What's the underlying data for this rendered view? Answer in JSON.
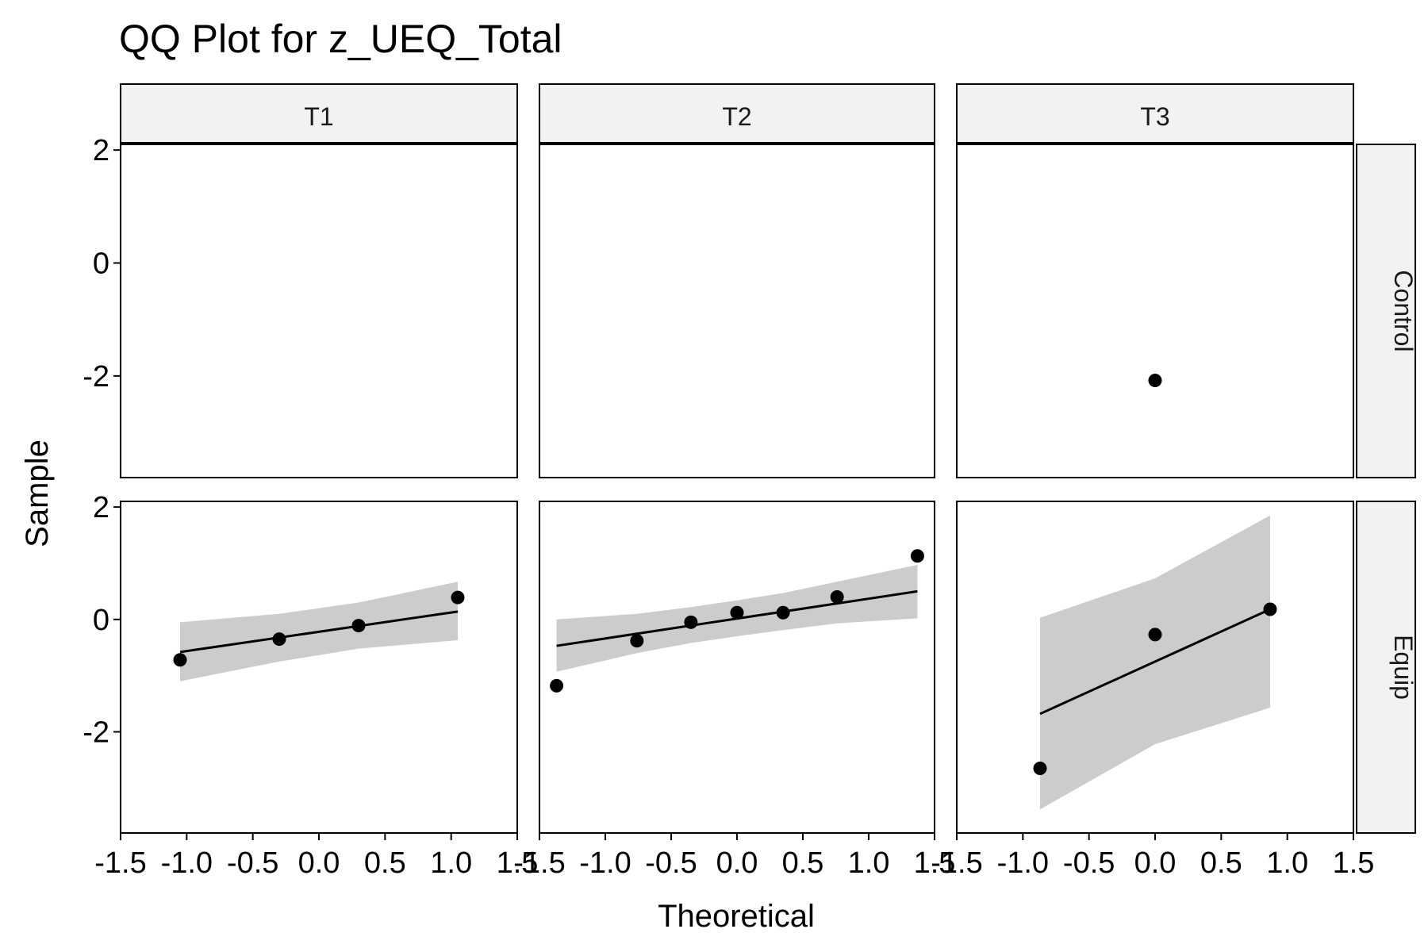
{
  "chart_data": {
    "type": "scatter",
    "title": "QQ Plot for z_UEQ_Total",
    "xlabel": "Theoretical",
    "ylabel": "Sample",
    "xlim": [
      -1.5,
      1.5
    ],
    "ylim": [
      -3.8,
      2.1
    ],
    "x_ticks": [
      -1.5,
      -1.0,
      -0.5,
      0.0,
      0.5,
      1.0,
      1.5
    ],
    "x_tick_labels": [
      "-1.5",
      "-1.0",
      "-0.5",
      "0.0",
      "0.5",
      "1.0",
      "1.5"
    ],
    "y_ticks": [
      2,
      0,
      -2
    ],
    "y_tick_labels": [
      "2",
      "0",
      "-2"
    ],
    "columns": [
      "T1",
      "T2",
      "T3"
    ],
    "rows": [
      "Control",
      "Equip"
    ],
    "grid": false,
    "colors": {
      "points": "#000000",
      "line": "#000000",
      "band": "#cccccc",
      "strip_fill": "#f2f2f2",
      "border": "#000000"
    },
    "panels": [
      {
        "row": "Control",
        "col": "T1",
        "points": []
      },
      {
        "row": "Control",
        "col": "T2",
        "points": []
      },
      {
        "row": "Control",
        "col": "T3",
        "points": [
          {
            "x": 0.0,
            "y": -2.08
          }
        ]
      },
      {
        "row": "Equip",
        "col": "T1",
        "points": [
          {
            "x": -1.05,
            "y": -0.72
          },
          {
            "x": -0.3,
            "y": -0.35
          },
          {
            "x": 0.3,
            "y": -0.11
          },
          {
            "x": 1.05,
            "y": 0.39
          }
        ],
        "line": [
          {
            "x": -1.05,
            "y": -0.58
          },
          {
            "x": 1.05,
            "y": 0.14
          }
        ],
        "band": [
          {
            "x": -1.05,
            "lower": -1.1,
            "upper": -0.05
          },
          {
            "x": -0.3,
            "lower": -0.75,
            "upper": 0.1
          },
          {
            "x": 0.3,
            "lower": -0.52,
            "upper": 0.3
          },
          {
            "x": 1.05,
            "lower": -0.37,
            "upper": 0.67
          }
        ]
      },
      {
        "row": "Equip",
        "col": "T2",
        "points": [
          {
            "x": -1.37,
            "y": -1.18
          },
          {
            "x": -0.76,
            "y": -0.38
          },
          {
            "x": -0.35,
            "y": -0.05
          },
          {
            "x": 0.0,
            "y": 0.12
          },
          {
            "x": 0.35,
            "y": 0.12
          },
          {
            "x": 0.76,
            "y": 0.4
          },
          {
            "x": 1.37,
            "y": 1.13
          }
        ],
        "line": [
          {
            "x": -1.37,
            "y": -0.47
          },
          {
            "x": 1.37,
            "y": 0.5
          }
        ],
        "band": [
          {
            "x": -1.37,
            "lower": -0.93,
            "upper": 0.0
          },
          {
            "x": -0.76,
            "lower": -0.6,
            "upper": 0.1
          },
          {
            "x": -0.35,
            "lower": -0.42,
            "upper": 0.22
          },
          {
            "x": 0.0,
            "lower": -0.3,
            "upper": 0.34
          },
          {
            "x": 0.35,
            "lower": -0.19,
            "upper": 0.47
          },
          {
            "x": 0.76,
            "lower": -0.07,
            "upper": 0.67
          },
          {
            "x": 1.37,
            "lower": 0.02,
            "upper": 0.97
          }
        ]
      },
      {
        "row": "Equip",
        "col": "T3",
        "points": [
          {
            "x": -0.87,
            "y": -2.65
          },
          {
            "x": 0.0,
            "y": -0.27
          },
          {
            "x": 0.87,
            "y": 0.18
          }
        ],
        "line": [
          {
            "x": -0.87,
            "y": -1.68
          },
          {
            "x": 0.87,
            "y": 0.18
          }
        ],
        "band": [
          {
            "x": -0.87,
            "lower": -3.38,
            "upper": 0.03
          },
          {
            "x": 0.0,
            "lower": -2.22,
            "upper": 0.73
          },
          {
            "x": 0.87,
            "lower": -1.57,
            "upper": 1.85
          }
        ]
      }
    ]
  }
}
